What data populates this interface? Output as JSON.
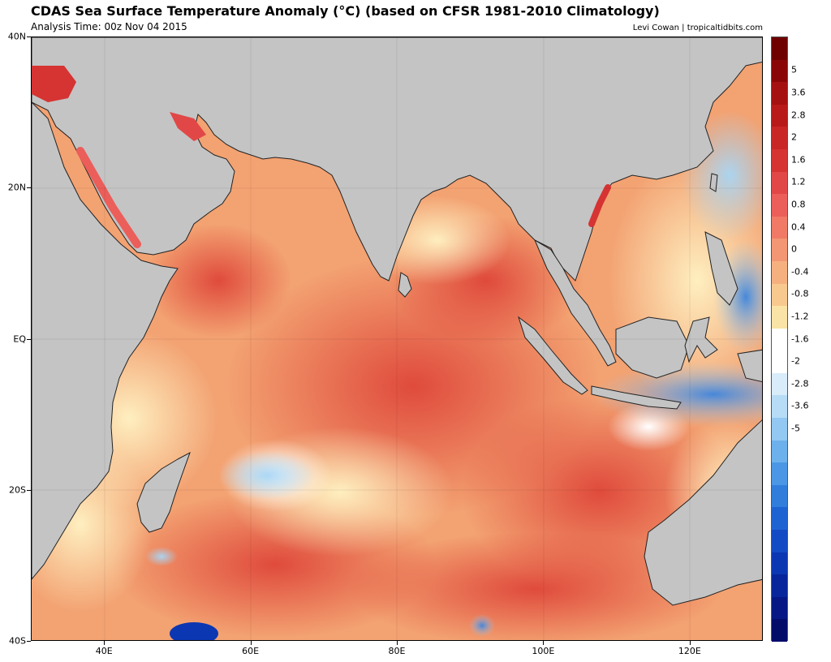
{
  "header": {
    "title": "CDAS Sea Surface Temperature Anomaly (°C) (based on CFSR 1981-2010 Climatology)",
    "subtitle": "Analysis Time: 00z Nov 04 2015",
    "credit": "Levi Cowan | tropicaltidbits.com"
  },
  "map": {
    "lat_range": [
      -40,
      40
    ],
    "lon_range": [
      30,
      130
    ],
    "lat_labels": [
      "40N",
      "20N",
      "EQ",
      "20S",
      "40S"
    ],
    "lon_labels": [
      "40E",
      "60E",
      "80E",
      "100E",
      "120E"
    ],
    "land_color": "#c4c4c4",
    "border_color": "#222222"
  },
  "colorbar": {
    "labels": [
      "5",
      "3.6",
      "2.8",
      "2",
      "1.6",
      "1.2",
      "0.8",
      "0.4",
      "0",
      "-0.4",
      "-0.8",
      "-1.2",
      "-1.6",
      "-2",
      "-2.8",
      "-3.6",
      "-5"
    ],
    "colors": [
      "#6e0000",
      "#8a0606",
      "#a51010",
      "#b81a1a",
      "#c92626",
      "#d63333",
      "#e24747",
      "#eb5e5a",
      "#f07a66",
      "#f39673",
      "#f6b080",
      "#f8c98f",
      "#fae3a6",
      "#ffffff",
      "#ffffff",
      "#d8ecfa",
      "#b6dcf6",
      "#92c8f1",
      "#6cb1eb",
      "#4b97e5",
      "#307ddc",
      "#1e63d2",
      "#134bc4",
      "#0c37b2",
      "#08259c",
      "#061684",
      "#040c6a"
    ]
  }
}
